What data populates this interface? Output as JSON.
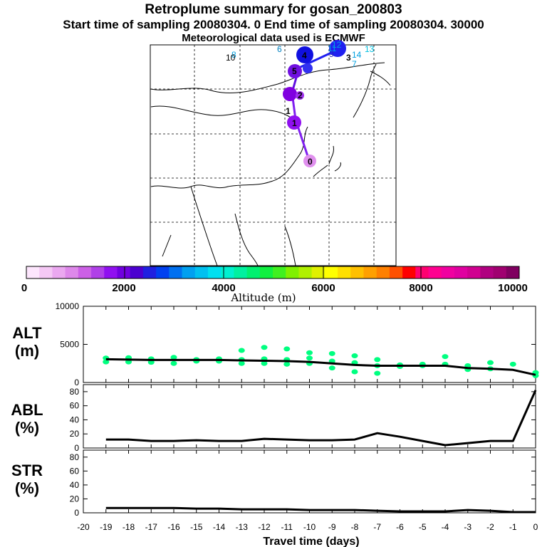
{
  "header": {
    "title": "Retroplume summary for gosan_200803",
    "subtitle": "Start time of sampling 20080304.     0     End time of sampling 20080304. 30000",
    "met_note": "Meteorological data used is ECMWF"
  },
  "colorbar": {
    "label": "Altitude (m)",
    "tick_labels": [
      "0",
      "2000",
      "4000",
      "6000",
      "8000",
      "10000"
    ],
    "colors": [
      "#fde6fd",
      "#f5c8f5",
      "#eba8f0",
      "#de88ea",
      "#cc60e6",
      "#b040e8",
      "#9010f0",
      "#7000e0",
      "#4c00d0",
      "#2020e0",
      "#0040f0",
      "#0070f0",
      "#00a0f0",
      "#00c0f0",
      "#00e0f0",
      "#00f0d0",
      "#00f0a0",
      "#00f070",
      "#10f040",
      "#40f020",
      "#80f000",
      "#b0f000",
      "#e0f000",
      "#ffff00",
      "#ffe000",
      "#ffc000",
      "#ffa000",
      "#ff8000",
      "#ff5000",
      "#ff0000",
      "#ff0070",
      "#ff0090",
      "#f000a0",
      "#e000a0",
      "#d00090",
      "#b00080",
      "#a00070",
      "#800060"
    ]
  },
  "map": {
    "labels": [
      "0",
      "1",
      "1",
      "2",
      "3",
      "4",
      "5",
      "6",
      "7",
      "8",
      "9",
      "10",
      "11",
      "12",
      "13",
      "14"
    ]
  },
  "chart_data": [
    {
      "type": "line",
      "panel": "altitude",
      "ylabel": "ALT\n(m)",
      "ylabel_lines": [
        "ALT",
        "(m)"
      ],
      "ylim": [
        0,
        10000
      ],
      "yticks": [
        "0",
        "5000",
        "10000"
      ],
      "x": [
        -19,
        -18,
        -17,
        -16,
        -15,
        -14,
        -13,
        -12,
        -11,
        -10,
        -9,
        -8,
        -7,
        -6,
        -5,
        -4,
        -3,
        -2,
        -1,
        0
      ],
      "series": [
        {
          "name": "median altitude",
          "values": [
            3050,
            3000,
            2950,
            2950,
            2950,
            2950,
            2900,
            2850,
            2800,
            2700,
            2500,
            2300,
            2200,
            2200,
            2200,
            2200,
            1900,
            1800,
            1650,
            1000
          ]
        }
      ],
      "scatter": [
        {
          "x": -19,
          "y": 3200
        },
        {
          "x": -19,
          "y": 2700
        },
        {
          "x": -18,
          "y": 3250
        },
        {
          "x": -18,
          "y": 2700
        },
        {
          "x": -17,
          "y": 3100
        },
        {
          "x": -17,
          "y": 2650
        },
        {
          "x": -16,
          "y": 3300
        },
        {
          "x": -16,
          "y": 2500
        },
        {
          "x": -15,
          "y": 3000
        },
        {
          "x": -15,
          "y": 2800
        },
        {
          "x": -14,
          "y": 3100
        },
        {
          "x": -14,
          "y": 2800
        },
        {
          "x": -13,
          "y": 4200
        },
        {
          "x": -13,
          "y": 3000
        },
        {
          "x": -13,
          "y": 2500
        },
        {
          "x": -12,
          "y": 4600
        },
        {
          "x": -12,
          "y": 3100
        },
        {
          "x": -12,
          "y": 2500
        },
        {
          "x": -11,
          "y": 4400
        },
        {
          "x": -11,
          "y": 3000
        },
        {
          "x": -11,
          "y": 2400
        },
        {
          "x": -10,
          "y": 3900
        },
        {
          "x": -10,
          "y": 3200
        },
        {
          "x": -10,
          "y": 2500
        },
        {
          "x": -9,
          "y": 3800
        },
        {
          "x": -9,
          "y": 2800
        },
        {
          "x": -9,
          "y": 1900
        },
        {
          "x": -8,
          "y": 3500
        },
        {
          "x": -8,
          "y": 2600
        },
        {
          "x": -8,
          "y": 1400
        },
        {
          "x": -7,
          "y": 3000
        },
        {
          "x": -7,
          "y": 2200
        },
        {
          "x": -7,
          "y": 1200
        },
        {
          "x": -6,
          "y": 2300
        },
        {
          "x": -6,
          "y": 2100
        },
        {
          "x": -5,
          "y": 2400
        },
        {
          "x": -5,
          "y": 2200
        },
        {
          "x": -4,
          "y": 3400
        },
        {
          "x": -4,
          "y": 2400
        },
        {
          "x": -3,
          "y": 2200
        },
        {
          "x": -3,
          "y": 1700
        },
        {
          "x": -2,
          "y": 2600
        },
        {
          "x": -2,
          "y": 1800
        },
        {
          "x": -1,
          "y": 2400
        },
        {
          "x": 0,
          "y": 1300
        },
        {
          "x": 0,
          "y": 900
        }
      ],
      "scatter_color": "#00ff80"
    },
    {
      "type": "line",
      "panel": "abl",
      "ylabel": "ABL\n(%)",
      "ylabel_lines": [
        "ABL",
        "(%)"
      ],
      "ylim": [
        0,
        90
      ],
      "yticks": [
        "0",
        "20",
        "40",
        "60",
        "80"
      ],
      "x": [
        -19,
        -18,
        -17,
        -16,
        -15,
        -14,
        -13,
        -12,
        -11,
        -10,
        -9,
        -8,
        -7,
        -6,
        -5,
        -4,
        -3,
        -2,
        -1,
        0
      ],
      "series": [
        {
          "name": "ABL fraction",
          "values": [
            12,
            12,
            10,
            10,
            11,
            10,
            10,
            13,
            12,
            11,
            11,
            12,
            21,
            16,
            10,
            4,
            7,
            10,
            10,
            82
          ]
        }
      ]
    },
    {
      "type": "line",
      "panel": "stratosphere",
      "ylabel": "STR\n(%)",
      "ylabel_lines": [
        "STR",
        "(%)"
      ],
      "ylim": [
        0,
        90
      ],
      "yticks": [
        "0",
        "20",
        "40",
        "60",
        "80"
      ],
      "x": [
        -19,
        -18,
        -17,
        -16,
        -15,
        -14,
        -13,
        -12,
        -11,
        -10,
        -9,
        -8,
        -7,
        -6,
        -5,
        -4,
        -3,
        -2,
        -1,
        0
      ],
      "series": [
        {
          "name": "stratospheric fraction",
          "values": [
            7,
            7,
            7,
            7,
            6,
            6,
            5,
            5,
            5,
            4,
            4,
            4,
            3,
            2,
            2,
            2,
            4,
            3,
            1,
            1
          ]
        }
      ],
      "xlabel": "Travel time (days)",
      "xlim": [
        -20,
        0
      ],
      "xticks": [
        "-20",
        "-19",
        "-18",
        "-17",
        "-16",
        "-15",
        "-14",
        "-13",
        "-12",
        "-11",
        "-10",
        "-9",
        "-8",
        "-7",
        "-6",
        "-5",
        "-4",
        "-3",
        "-2",
        "-1",
        "0"
      ]
    }
  ]
}
